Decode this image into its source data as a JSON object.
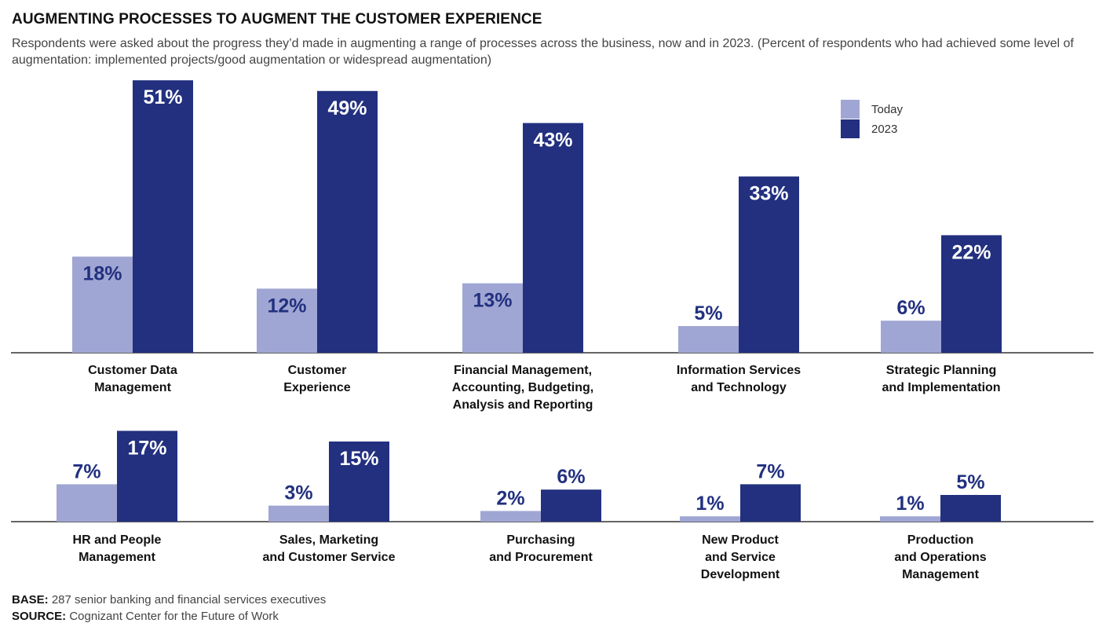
{
  "title": "AUGMENTING PROCESSES TO AUGMENT THE CUSTOMER EXPERIENCE",
  "subtitle": "Respondents were asked about the progress they’d made in augmenting a range of processes across the business, now and in 2023. (Percent of respondents who had achieved some level of augmentation: implemented projects/good augmentation or widespread augmentation)",
  "legend": [
    {
      "name": "Today",
      "color": "#a0a6d3"
    },
    {
      "name": "2023",
      "color": "#22307f"
    }
  ],
  "footer": {
    "base_label": "BASE:",
    "base_text": " 287 senior banking and financial services executives",
    "source_label": "SOURCE:",
    "source_text": " Cognizant Center for the Future of Work"
  },
  "chart_data": [
    {
      "type": "bar",
      "categories": [
        "Customer Data Management",
        "Customer Experience",
        "Financial Management, Accounting, Budgeting, Analysis and Reporting",
        "Information Services and Technology",
        "Strategic Planning and Implementation"
      ],
      "category_lines": [
        [
          "Customer Data",
          "Management"
        ],
        [
          "Customer",
          "Experience"
        ],
        [
          "Financial Management,",
          "Accounting, Budgeting,",
          "Analysis and Reporting"
        ],
        [
          "Information Services",
          "and Technology"
        ],
        [
          "Strategic Planning",
          "and Implementation"
        ]
      ],
      "series": [
        {
          "name": "Today",
          "values": [
            18,
            12,
            13,
            5,
            6
          ],
          "labels": [
            "18%",
            "12%",
            "13%",
            "5%",
            "6%"
          ]
        },
        {
          "name": "2023",
          "values": [
            51,
            49,
            43,
            33,
            22
          ],
          "labels": [
            "51%",
            "49%",
            "43%",
            "33%",
            "22%"
          ]
        }
      ],
      "unit": "%",
      "grid": false
    },
    {
      "type": "bar",
      "categories": [
        "HR and People Management",
        "Sales, Marketing and Customer Service",
        "Purchasing and Procurement",
        "New Product and Service Development",
        "Production and Operations Management"
      ],
      "category_lines": [
        [
          "HR and People",
          "Management"
        ],
        [
          "Sales, Marketing",
          "and Customer Service"
        ],
        [
          "Purchasing",
          "and Procurement"
        ],
        [
          "New Product",
          "and Service",
          "Development"
        ],
        [
          "Production",
          "and Operations",
          "Management"
        ]
      ],
      "series": [
        {
          "name": "Today",
          "values": [
            7,
            3,
            2,
            1,
            1
          ],
          "labels": [
            "7%",
            "3%",
            "2%",
            "1%",
            "1%"
          ]
        },
        {
          "name": "2023",
          "values": [
            17,
            15,
            6,
            7,
            5
          ],
          "labels": [
            "17%",
            "15%",
            "6%",
            "7%",
            "5%"
          ]
        }
      ],
      "unit": "%",
      "grid": false
    }
  ]
}
